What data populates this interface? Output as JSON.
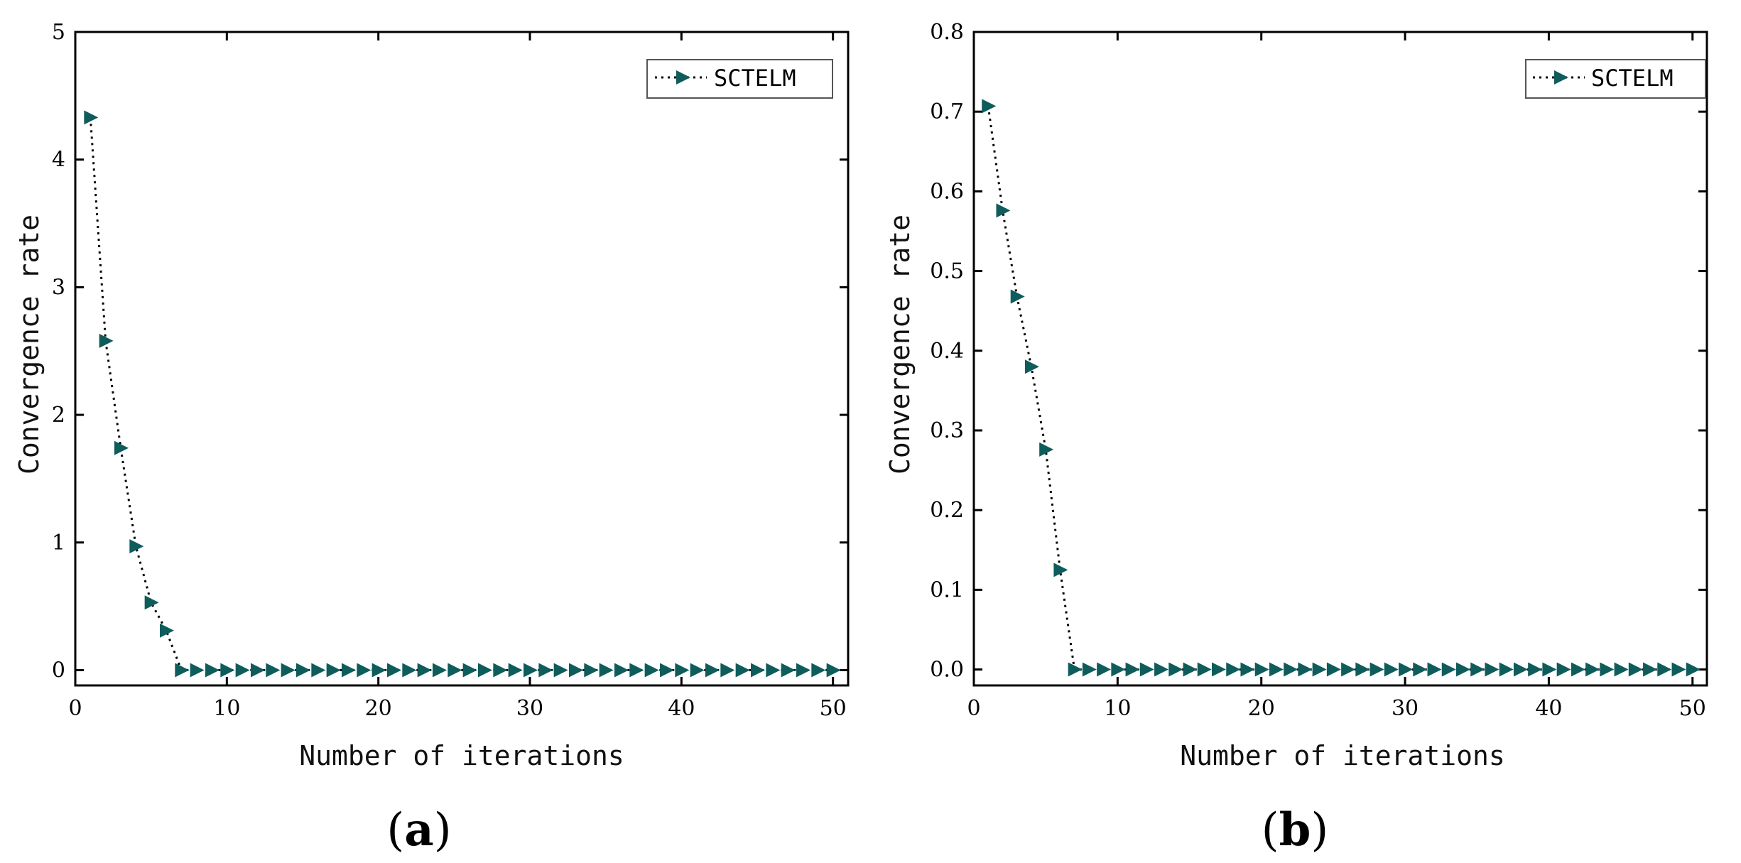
{
  "chart_data": [
    {
      "type": "line",
      "panel": "(a)",
      "panel_letter": "a",
      "title": "",
      "xlabel": "Number of iterations",
      "ylabel": "Convergence rate",
      "xlim": [
        0,
        51
      ],
      "ylim": [
        -0.12,
        5
      ],
      "xticks": [
        0,
        10,
        20,
        30,
        40,
        50
      ],
      "xtick_labels": [
        "0",
        "10",
        "20",
        "30",
        "40",
        "50"
      ],
      "yticks": [
        0,
        1,
        2,
        3,
        4,
        5
      ],
      "ytick_labels": [
        "0",
        "1",
        "2",
        "3",
        "4",
        "5"
      ],
      "legend": {
        "position": "top-right",
        "entries": [
          "SCTELM"
        ]
      },
      "series": [
        {
          "name": "SCTELM",
          "color": "#0f5c5c",
          "marker": "triangle-right",
          "line_style": "dotted",
          "x": [
            1,
            2,
            3,
            4,
            5,
            6,
            7,
            8,
            9,
            10,
            11,
            12,
            13,
            14,
            15,
            16,
            17,
            18,
            19,
            20,
            21,
            22,
            23,
            24,
            25,
            26,
            27,
            28,
            29,
            30,
            31,
            32,
            33,
            34,
            35,
            36,
            37,
            38,
            39,
            40,
            41,
            42,
            43,
            44,
            45,
            46,
            47,
            48,
            49,
            50
          ],
          "values": [
            4.33,
            2.58,
            1.74,
            0.97,
            0.53,
            0.31,
            0,
            0,
            0,
            0,
            0,
            0,
            0,
            0,
            0,
            0,
            0,
            0,
            0,
            0,
            0,
            0,
            0,
            0,
            0,
            0,
            0,
            0,
            0,
            0,
            0,
            0,
            0,
            0,
            0,
            0,
            0,
            0,
            0,
            0,
            0,
            0,
            0,
            0,
            0,
            0,
            0,
            0,
            0,
            0
          ]
        }
      ]
    },
    {
      "type": "line",
      "panel": "(b)",
      "panel_letter": "b",
      "title": "",
      "xlabel": "Number of iterations",
      "ylabel": "Convergence rate",
      "xlim": [
        0,
        51
      ],
      "ylim": [
        -0.02,
        0.8
      ],
      "xticks": [
        0,
        10,
        20,
        30,
        40,
        50
      ],
      "xtick_labels": [
        "0",
        "10",
        "20",
        "30",
        "40",
        "50"
      ],
      "yticks": [
        0,
        0.1,
        0.2,
        0.3,
        0.4,
        0.5,
        0.6,
        0.7,
        0.8
      ],
      "ytick_labels": [
        "0.0",
        "0.1",
        "0.2",
        "0.3",
        "0.4",
        "0.5",
        "0.6",
        "0.7",
        "0.8"
      ],
      "legend": {
        "position": "top-right",
        "entries": [
          "SCTELM"
        ]
      },
      "series": [
        {
          "name": "SCTELM",
          "color": "#0f5c5c",
          "marker": "triangle-right",
          "line_style": "dotted",
          "x": [
            1,
            2,
            3,
            4,
            5,
            6,
            7,
            8,
            9,
            10,
            11,
            12,
            13,
            14,
            15,
            16,
            17,
            18,
            19,
            20,
            21,
            22,
            23,
            24,
            25,
            26,
            27,
            28,
            29,
            30,
            31,
            32,
            33,
            34,
            35,
            36,
            37,
            38,
            39,
            40,
            41,
            42,
            43,
            44,
            45,
            46,
            47,
            48,
            49,
            50
          ],
          "values": [
            0.707,
            0.576,
            0.468,
            0.38,
            0.276,
            0.125,
            0,
            0,
            0,
            0,
            0,
            0,
            0,
            0,
            0,
            0,
            0,
            0,
            0,
            0,
            0,
            0,
            0,
            0,
            0,
            0,
            0,
            0,
            0,
            0,
            0,
            0,
            0,
            0,
            0,
            0,
            0,
            0,
            0,
            0,
            0,
            0,
            0,
            0,
            0,
            0,
            0,
            0,
            0,
            0
          ]
        }
      ]
    }
  ]
}
